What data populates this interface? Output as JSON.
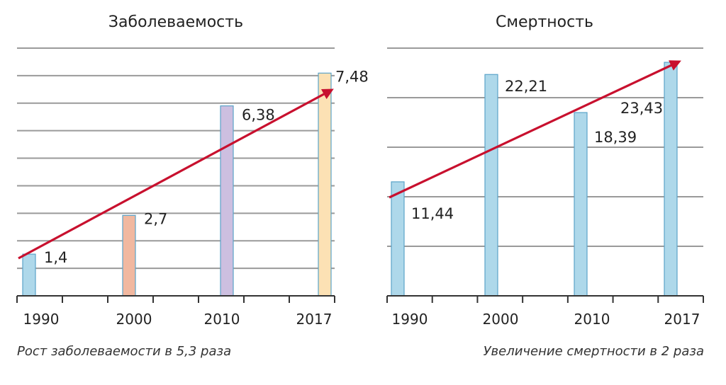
{
  "chart_data": [
    {
      "type": "bar",
      "title": "Заболеваемость",
      "categories": [
        "1990",
        "2000",
        "2010",
        "2017"
      ],
      "values": [
        1.4,
        2.7,
        6.38,
        7.48
      ],
      "value_labels": [
        "1,4",
        "2,7",
        "6,38",
        "7,48"
      ],
      "bar_colors": [
        "#aed8ea",
        "#f1b8a0",
        "#cdbfe0",
        "#fce1b4"
      ],
      "ylim": [
        0,
        8.2
      ],
      "grid": true,
      "trend_arrow": true,
      "caption": "Рост заболеваемости в 5,3 раза"
    },
    {
      "type": "bar",
      "title": "Смертность",
      "categories": [
        "1990",
        "2000",
        "2010",
        "2017"
      ],
      "values": [
        11.44,
        22.21,
        18.39,
        23.43
      ],
      "value_labels": [
        "11,44",
        "22,21",
        "18,39",
        "23,43"
      ],
      "bar_colors": [
        "#aed8ea",
        "#aed8ea",
        "#aed8ea",
        "#aed8ea"
      ],
      "ylim": [
        0,
        24.5
      ],
      "grid": true,
      "trend_arrow": true,
      "caption": "Увеличение смертности в 2 раза"
    }
  ],
  "colors": {
    "arrow": "#c8102e",
    "grid": "#9a9a9a",
    "bar_stroke": "#5aa3c8",
    "axis": "#333333"
  }
}
